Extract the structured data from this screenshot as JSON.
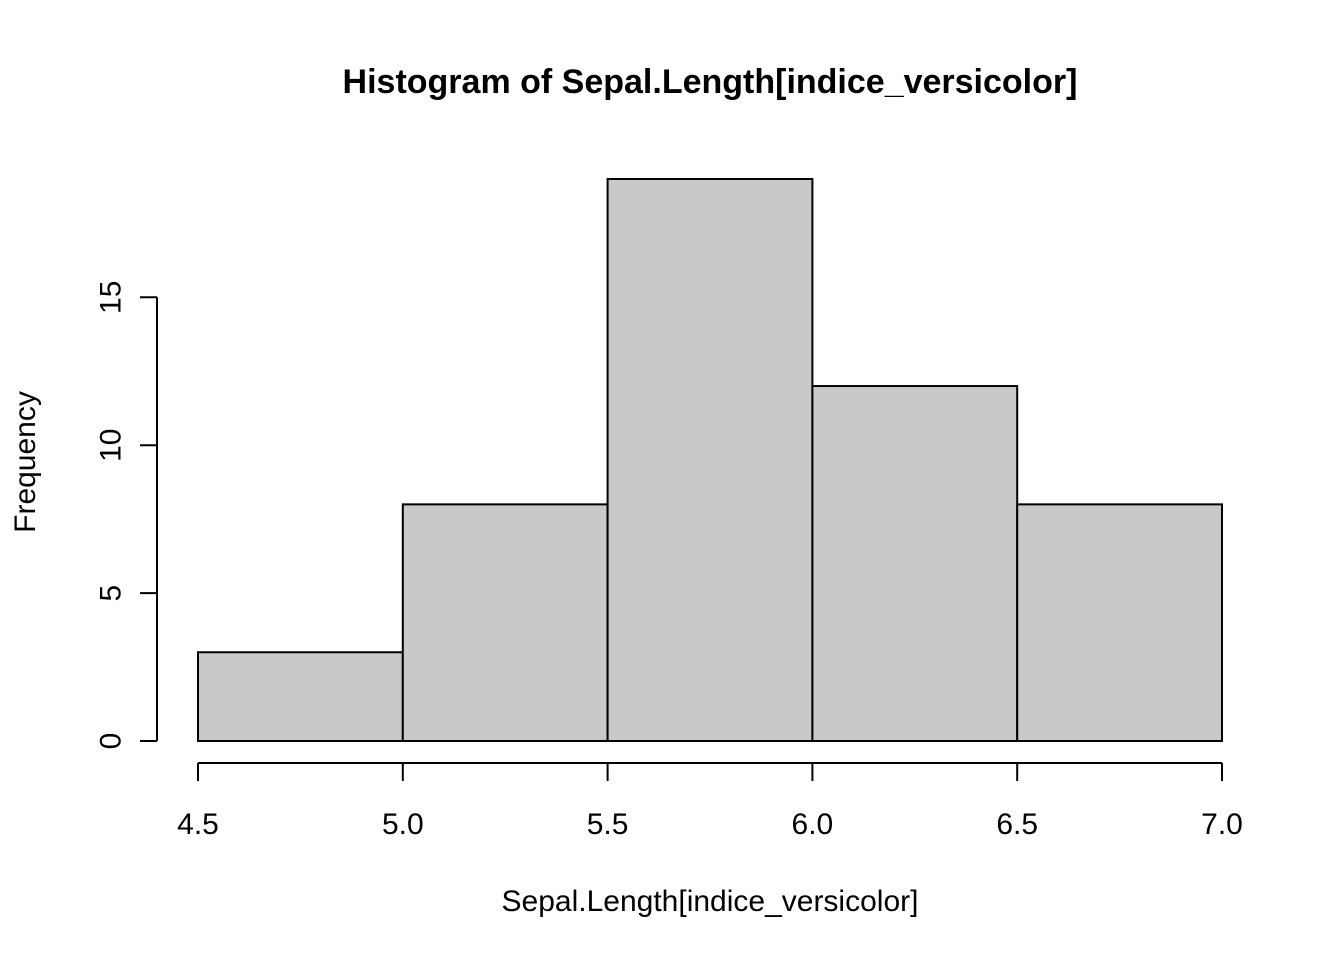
{
  "chart_data": {
    "type": "bar",
    "title": "Histogram of Sepal.Length[indice_versicolor]",
    "xlabel": "Sepal.Length[indice_versicolor]",
    "ylabel": "Frequency",
    "bins": [
      {
        "from": 4.5,
        "to": 5.0,
        "count": 3
      },
      {
        "from": 5.0,
        "to": 5.5,
        "count": 8
      },
      {
        "from": 5.5,
        "to": 6.0,
        "count": 19
      },
      {
        "from": 6.0,
        "to": 6.5,
        "count": 12
      },
      {
        "from": 6.5,
        "to": 7.0,
        "count": 8
      }
    ],
    "x_ticks": [
      4.5,
      5.0,
      5.5,
      6.0,
      6.5,
      7.0
    ],
    "x_tick_labels": [
      "4.5",
      "5.0",
      "5.5",
      "6.0",
      "6.5",
      "7.0"
    ],
    "y_ticks": [
      0,
      5,
      10,
      15
    ],
    "y_tick_labels": [
      "0",
      "5",
      "10",
      "15"
    ],
    "xlim": [
      4.5,
      7.0
    ],
    "ylim": [
      0,
      19
    ],
    "grid": false,
    "bar_fill": "#c9c9c9",
    "bar_stroke": "#000000"
  }
}
